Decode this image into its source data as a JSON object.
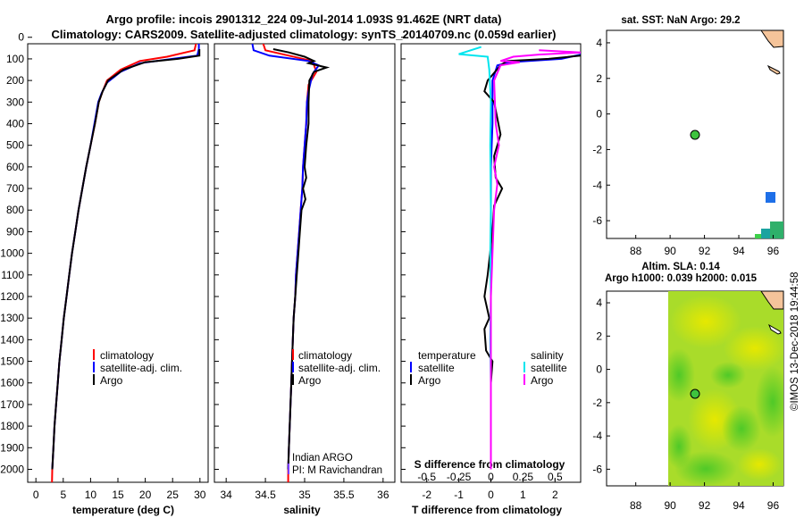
{
  "title": {
    "line1": "Argo profile: incois 2901312_224 09-Jul-2014 1.093S 91.462E (NRT data)",
    "line2": "Climatology: CARS2009. Satellite-adjusted climatology: synTS_20140709.nc (0.059d earlier)"
  },
  "panels": {
    "temperature": {
      "xlabel": "temperature (deg C)",
      "legend": [
        "climatology",
        "satellite-adj. clim.",
        "Argo"
      ]
    },
    "salinity": {
      "xlabel": "salinity",
      "legend": [
        "climatology",
        "satellite-adj. clim.",
        "Argo"
      ],
      "credit": [
        "Indian ARGO",
        "PI: M Ravichandran"
      ]
    },
    "difference": {
      "xlabel": "T difference from climatology",
      "s_xlabel": "S difference from climatology",
      "legend_t_header": "temperature",
      "legend_t": [
        "satellite",
        "Argo"
      ],
      "legend_s_header": "salinity",
      "legend_s": [
        "satellite",
        "Argo"
      ]
    }
  },
  "chart_data": [
    {
      "type": "line",
      "name": "temperature",
      "xlabel": "temperature (deg C)",
      "ylabel": "depth (m)",
      "xlim": [
        -1.5,
        31.5
      ],
      "ylim": [
        2060,
        30
      ],
      "xticks": [
        0,
        5,
        10,
        15,
        20,
        25,
        30
      ],
      "yticks": [
        0,
        100,
        200,
        300,
        400,
        500,
        600,
        700,
        800,
        900,
        1000,
        1100,
        1200,
        1300,
        1400,
        1500,
        1600,
        1700,
        1800,
        1900,
        2000
      ],
      "series": [
        {
          "name": "climatology",
          "color": "#ff0000",
          "points": [
            [
              29.5,
              5
            ],
            [
              29,
              60
            ],
            [
              24,
              90
            ],
            [
              19,
              110
            ],
            [
              15.5,
              150
            ],
            [
              13,
              200
            ],
            [
              12.2,
              250
            ],
            [
              11.5,
              300
            ],
            [
              10.8,
              400
            ],
            [
              10,
              500
            ],
            [
              9.2,
              600
            ],
            [
              8.5,
              700
            ],
            [
              7.8,
              800
            ],
            [
              7.2,
              900
            ],
            [
              6.6,
              1000
            ],
            [
              6.1,
              1100
            ],
            [
              5.6,
              1200
            ],
            [
              5.1,
              1300
            ],
            [
              4.7,
              1400
            ],
            [
              4.3,
              1500
            ],
            [
              4.0,
              1600
            ],
            [
              3.7,
              1700
            ],
            [
              3.4,
              1800
            ],
            [
              3.2,
              1900
            ],
            [
              3.0,
              2000
            ],
            [
              2.95,
              2060
            ]
          ]
        },
        {
          "name": "satellite-adj. clim.",
          "color": "#0000ff",
          "points": [
            [
              29.8,
              5
            ],
            [
              29.8,
              55
            ],
            [
              29.5,
              85
            ],
            [
              25,
              100
            ],
            [
              19,
              120
            ],
            [
              15.5,
              160
            ],
            [
              13,
              210
            ],
            [
              12,
              260
            ],
            [
              11.4,
              300
            ],
            [
              10.7,
              400
            ],
            [
              10,
              500
            ],
            [
              9.2,
              600
            ],
            [
              8.5,
              700
            ],
            [
              7.8,
              800
            ],
            [
              7.2,
              900
            ],
            [
              6.6,
              1000
            ],
            [
              6.1,
              1100
            ],
            [
              5.6,
              1200
            ],
            [
              5.1,
              1300
            ],
            [
              4.7,
              1400
            ],
            [
              4.3,
              1500
            ],
            [
              4.0,
              1600
            ],
            [
              3.7,
              1700
            ],
            [
              3.4,
              1800
            ],
            [
              3.2,
              1900
            ],
            [
              3.0,
              2000
            ]
          ]
        },
        {
          "name": "Argo",
          "color": "#000000",
          "points": [
            [
              29.9,
              55
            ],
            [
              29.9,
              85
            ],
            [
              26,
              100
            ],
            [
              20,
              115
            ],
            [
              16,
              150
            ],
            [
              13.2,
              200
            ],
            [
              12.2,
              250
            ],
            [
              11.5,
              300
            ],
            [
              10.8,
              400
            ],
            [
              10,
              500
            ],
            [
              9.2,
              600
            ],
            [
              8.5,
              700
            ],
            [
              7.8,
              800
            ],
            [
              7.2,
              900
            ],
            [
              6.6,
              1000
            ],
            [
              6.1,
              1100
            ],
            [
              5.6,
              1200
            ],
            [
              5.1,
              1300
            ],
            [
              4.7,
              1400
            ],
            [
              4.3,
              1500
            ],
            [
              4.0,
              1600
            ],
            [
              3.7,
              1700
            ],
            [
              3.4,
              1800
            ],
            [
              3.2,
              1900
            ],
            [
              3.0,
              2000
            ]
          ]
        }
      ]
    },
    {
      "type": "line",
      "name": "salinity",
      "xlabel": "salinity",
      "ylabel": "depth (m)",
      "xlim": [
        33.85,
        36.15
      ],
      "ylim": [
        2060,
        30
      ],
      "xticks": [
        34,
        34.5,
        35,
        35.5,
        36
      ],
      "series": [
        {
          "name": "climatology",
          "color": "#ff0000",
          "points": [
            [
              34.45,
              5
            ],
            [
              34.5,
              60
            ],
            [
              34.8,
              85
            ],
            [
              35.1,
              110
            ],
            [
              35.15,
              160
            ],
            [
              35.05,
              220
            ],
            [
              35.03,
              300
            ],
            [
              35.02,
              400
            ],
            [
              35.0,
              500
            ],
            [
              34.98,
              600
            ],
            [
              34.97,
              700
            ],
            [
              34.95,
              800
            ],
            [
              34.93,
              900
            ],
            [
              34.91,
              1000
            ],
            [
              34.89,
              1100
            ],
            [
              34.88,
              1200
            ],
            [
              34.86,
              1300
            ],
            [
              34.85,
              1400
            ],
            [
              34.84,
              1500
            ],
            [
              34.83,
              1600
            ],
            [
              34.82,
              1700
            ],
            [
              34.81,
              1800
            ],
            [
              34.8,
              1900
            ],
            [
              34.79,
              2000
            ],
            [
              34.79,
              2060
            ]
          ]
        },
        {
          "name": "satellite-adj. clim.",
          "color": "#0000ff",
          "points": [
            [
              34.32,
              5
            ],
            [
              34.35,
              60
            ],
            [
              34.55,
              85
            ],
            [
              35.05,
              110
            ],
            [
              35.18,
              130
            ],
            [
              35.1,
              170
            ],
            [
              35.05,
              250
            ],
            [
              35.03,
              300
            ],
            [
              35.02,
              400
            ],
            [
              35.0,
              500
            ],
            [
              34.98,
              600
            ],
            [
              34.97,
              700
            ],
            [
              34.95,
              800
            ],
            [
              34.93,
              900
            ],
            [
              34.91,
              1000
            ],
            [
              34.89,
              1100
            ],
            [
              34.88,
              1200
            ],
            [
              34.86,
              1300
            ],
            [
              34.85,
              1400
            ],
            [
              34.84,
              1500
            ],
            [
              34.83,
              1600
            ],
            [
              34.82,
              1700
            ],
            [
              34.81,
              1800
            ],
            [
              34.8,
              1900
            ],
            [
              34.79,
              2000
            ]
          ]
        },
        {
          "name": "Argo",
          "color": "#000000",
          "points": [
            [
              34.6,
              55
            ],
            [
              34.8,
              70
            ],
            [
              35.0,
              90
            ],
            [
              35.12,
              110
            ],
            [
              35.05,
              120
            ],
            [
              35.28,
              140
            ],
            [
              35.12,
              160
            ],
            [
              35.06,
              200
            ],
            [
              35.05,
              300
            ],
            [
              35.05,
              400
            ],
            [
              35.02,
              500
            ],
            [
              35.0,
              600
            ],
            [
              35.02,
              650
            ],
            [
              34.98,
              700
            ],
            [
              35.01,
              750
            ],
            [
              34.96,
              800
            ],
            [
              34.94,
              900
            ],
            [
              34.92,
              1000
            ],
            [
              34.9,
              1100
            ],
            [
              34.88,
              1200
            ],
            [
              34.86,
              1300
            ],
            [
              34.85,
              1400
            ],
            [
              34.84,
              1500
            ],
            [
              34.83,
              1600
            ],
            [
              34.82,
              1700
            ],
            [
              34.81,
              1800
            ],
            [
              34.8,
              1900
            ],
            [
              34.79,
              2000
            ]
          ]
        }
      ]
    },
    {
      "type": "line",
      "name": "difference",
      "xlabel": "T difference from climatology",
      "s_xlabel": "S difference from climatology",
      "ylabel": "depth (m)",
      "xlim": [
        -2.8,
        2.8
      ],
      "ylim": [
        2060,
        30
      ],
      "xticks": [
        -2,
        -1,
        0,
        1,
        2
      ],
      "s_xticks": [
        "-0.5",
        "-0.25",
        "0",
        "0.25",
        "0.5"
      ],
      "s_xtick_values": [
        -0.5,
        -0.25,
        0,
        0.25,
        0.5
      ],
      "series": [
        {
          "name": "temperature satellite",
          "color": "#0000ff",
          "points": [
            [
              2.8,
              80
            ],
            [
              2.2,
              100
            ],
            [
              0.6,
              115
            ],
            [
              0.2,
              130
            ],
            [
              0.05,
              200
            ],
            [
              0.05,
              400
            ],
            [
              0,
              600
            ],
            [
              0,
              1000
            ],
            [
              0,
              1500
            ],
            [
              0,
              2000
            ]
          ]
        },
        {
          "name": "temperature Argo",
          "color": "#000000",
          "points": [
            [
              2.8,
              85
            ],
            [
              1.8,
              100
            ],
            [
              0.5,
              110
            ],
            [
              0.3,
              130
            ],
            [
              -0.1,
              200
            ],
            [
              -0.2,
              250
            ],
            [
              0.1,
              300
            ],
            [
              0.3,
              450
            ],
            [
              0.1,
              550
            ],
            [
              0.15,
              650
            ],
            [
              0.35,
              700
            ],
            [
              0.1,
              780
            ],
            [
              0.05,
              900
            ],
            [
              -0.1,
              1100
            ],
            [
              -0.2,
              1200
            ],
            [
              -0.05,
              1300
            ],
            [
              -0.2,
              1350
            ],
            [
              -0.15,
              1450
            ],
            [
              0.05,
              1500
            ],
            [
              0,
              1600
            ],
            [
              0,
              1700
            ],
            [
              0,
              1800
            ],
            [
              0,
              1900
            ],
            [
              0,
              2000
            ]
          ]
        },
        {
          "name": "salinity satellite",
          "color": "#00e5ee",
          "points": [
            [
              -0.3,
              45
            ],
            [
              -1.0,
              78
            ],
            [
              -0.1,
              90
            ],
            [
              -0.05,
              150
            ],
            [
              0,
              300
            ],
            [
              -0.02,
              500
            ],
            [
              0,
              800
            ],
            [
              -0.02,
              1000
            ],
            [
              0,
              1200
            ],
            [
              -0.02,
              1400
            ],
            [
              0,
              1600
            ],
            [
              0,
              1800
            ],
            [
              0,
              2000
            ]
          ]
        },
        {
          "name": "salinity Argo",
          "color": "#ff00ff",
          "points": [
            [
              1.5,
              60
            ],
            [
              2.8,
              70
            ],
            [
              1.5,
              80
            ],
            [
              0.7,
              90
            ],
            [
              0.3,
              110
            ],
            [
              0.9,
              115
            ],
            [
              0.3,
              130
            ],
            [
              0.1,
              200
            ],
            [
              0.15,
              400
            ],
            [
              0.25,
              500
            ],
            [
              0.1,
              600
            ],
            [
              0.2,
              680
            ],
            [
              0.1,
              800
            ],
            [
              0.05,
              1000
            ],
            [
              0,
              1200
            ],
            [
              0,
              1400
            ],
            [
              0,
              1600
            ],
            [
              0,
              1800
            ],
            [
              0,
              2000
            ]
          ]
        }
      ]
    },
    {
      "type": "scatter",
      "name": "sst-map",
      "title": "sat. SST: NaN Argo: 29.2",
      "xlim": [
        86.3,
        96.6
      ],
      "ylim": [
        -7.0,
        4.7
      ],
      "xticks": [
        88,
        90,
        92,
        94,
        96
      ],
      "yticks": [
        4,
        2,
        0,
        -2,
        -4,
        -6
      ],
      "points": [
        {
          "label": "Argo float",
          "lon": 91.462,
          "lat": -1.093
        }
      ]
    },
    {
      "type": "heatmap",
      "name": "sla-map",
      "title": [
        "Altim. SLA: 0.14",
        "Argo h1000: 0.039 h2000: 0.015"
      ],
      "xlim": [
        86.3,
        96.6
      ],
      "ylim": [
        -7.0,
        4.7
      ],
      "xticks": [
        88,
        90,
        92,
        94,
        96
      ],
      "yticks": [
        4,
        2,
        0,
        -2,
        -4,
        -6
      ],
      "points": [
        {
          "label": "Argo float",
          "lon": 91.462,
          "lat": -1.093
        }
      ]
    }
  ],
  "maps": {
    "sst": {
      "title": "sat. SST: NaN Argo: 29.2"
    },
    "sla": {
      "title": [
        "Altim. SLA: 0.14",
        "Argo h1000: 0.039 h2000: 0.015"
      ]
    }
  },
  "stamp": "©IMOS 13-Dec-2018 19:44:58"
}
